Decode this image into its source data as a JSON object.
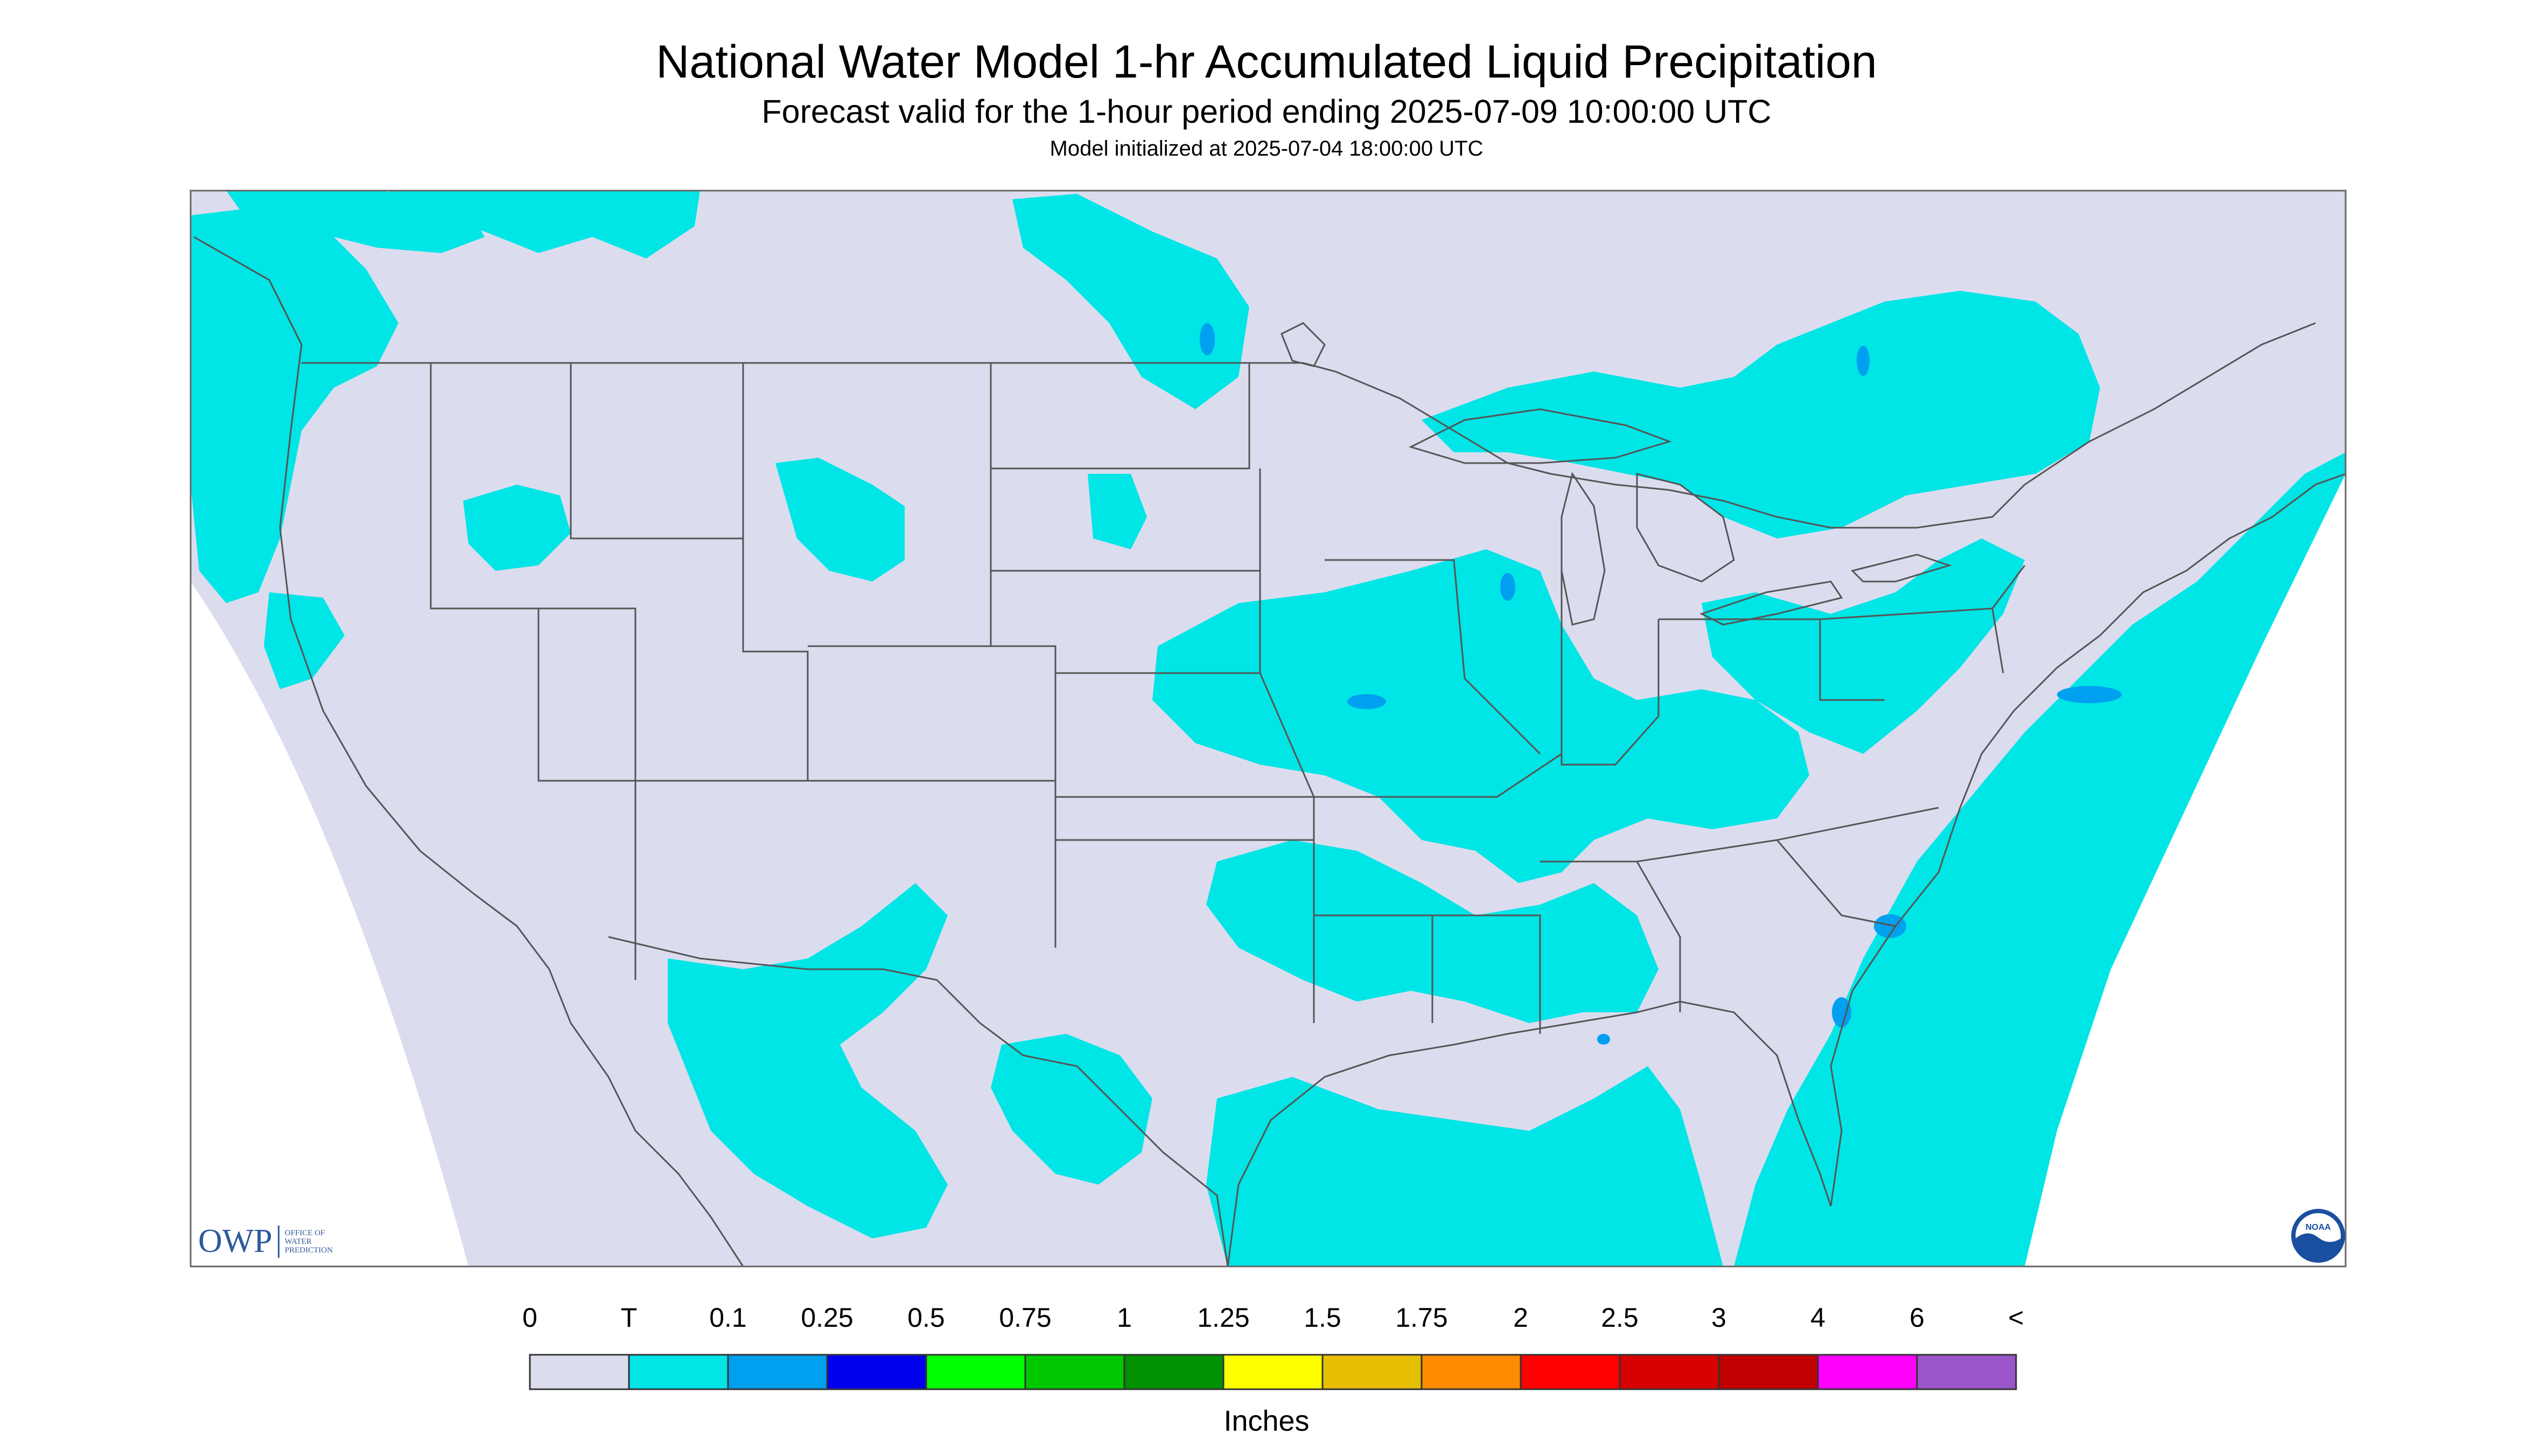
{
  "header": {
    "title": "National Water Model 1-hr Accumulated Liquid Precipitation",
    "subtitle": "Forecast valid for the 1-hour period ending 2025-07-09 10:00:00 UTC",
    "init_line": "Model initialized at 2025-07-04 18:00:00 UTC"
  },
  "legend": {
    "labels": [
      "0",
      "T",
      "0.1",
      "0.25",
      "0.5",
      "0.75",
      "1",
      "1.25",
      "1.5",
      "1.75",
      "2",
      "2.5",
      "3",
      "4",
      "6",
      "<"
    ],
    "colors": [
      "#dcdcef",
      "#00e5e5",
      "#00a0f0",
      "#0000f0",
      "#00ff00",
      "#00c800",
      "#009000",
      "#ffff00",
      "#e6c000",
      "#ff8c00",
      "#ff0000",
      "#d60000",
      "#c00000",
      "#ff00ff",
      "#9955c9"
    ],
    "units": "Inches"
  },
  "logos": {
    "owp_text": "OWP",
    "owp_sub": [
      "OFFICE OF",
      "WATER",
      "PREDICTION"
    ],
    "noaa_text": "NOAA"
  },
  "map": {
    "background_color": "#dcdcef",
    "precip_color": "#00e5e5",
    "heavier_color": "#00a0f0",
    "boundary_color": "#555555"
  }
}
